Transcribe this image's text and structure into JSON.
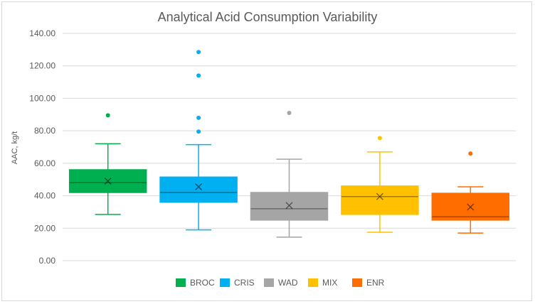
{
  "chart_data": {
    "type": "box",
    "title": "Analytical Acid Consumption Variability",
    "xlabel": "",
    "ylabel": "AAC, kg/t",
    "ylim": [
      0,
      140
    ],
    "yticks": [
      "0.00",
      "20.00",
      "40.00",
      "60.00",
      "80.00",
      "100.00",
      "120.00",
      "140.00"
    ],
    "grid": true,
    "legend_position": "bottom",
    "series": [
      {
        "name": "BROC",
        "color": "#00b050",
        "min": 28.5,
        "q1": 42,
        "median": 48,
        "q3": 56,
        "max": 72,
        "mean": 49,
        "outliers": [
          89.5
        ]
      },
      {
        "name": "CRIS",
        "color": "#00b0f0",
        "min": 19,
        "q1": 36,
        "median": 42,
        "q3": 51.5,
        "max": 71.5,
        "mean": 45.5,
        "outliers": [
          79.5,
          88,
          114,
          128.5
        ]
      },
      {
        "name": "WAD",
        "color": "#a5a5a5",
        "min": 14.5,
        "q1": 25,
        "median": 32,
        "q3": 42,
        "max": 62.5,
        "mean": 34,
        "outliers": [
          91
        ]
      },
      {
        "name": "MIX",
        "color": "#ffc000",
        "min": 17.5,
        "q1": 28.5,
        "median": 39.5,
        "q3": 46,
        "max": 67,
        "mean": 39.5,
        "outliers": [
          75.5
        ]
      },
      {
        "name": "ENR",
        "color": "#ff6d00",
        "min": 17,
        "q1": 25,
        "median": 27,
        "q3": 41.5,
        "max": 45.5,
        "mean": 33,
        "outliers": [
          66
        ]
      }
    ]
  }
}
